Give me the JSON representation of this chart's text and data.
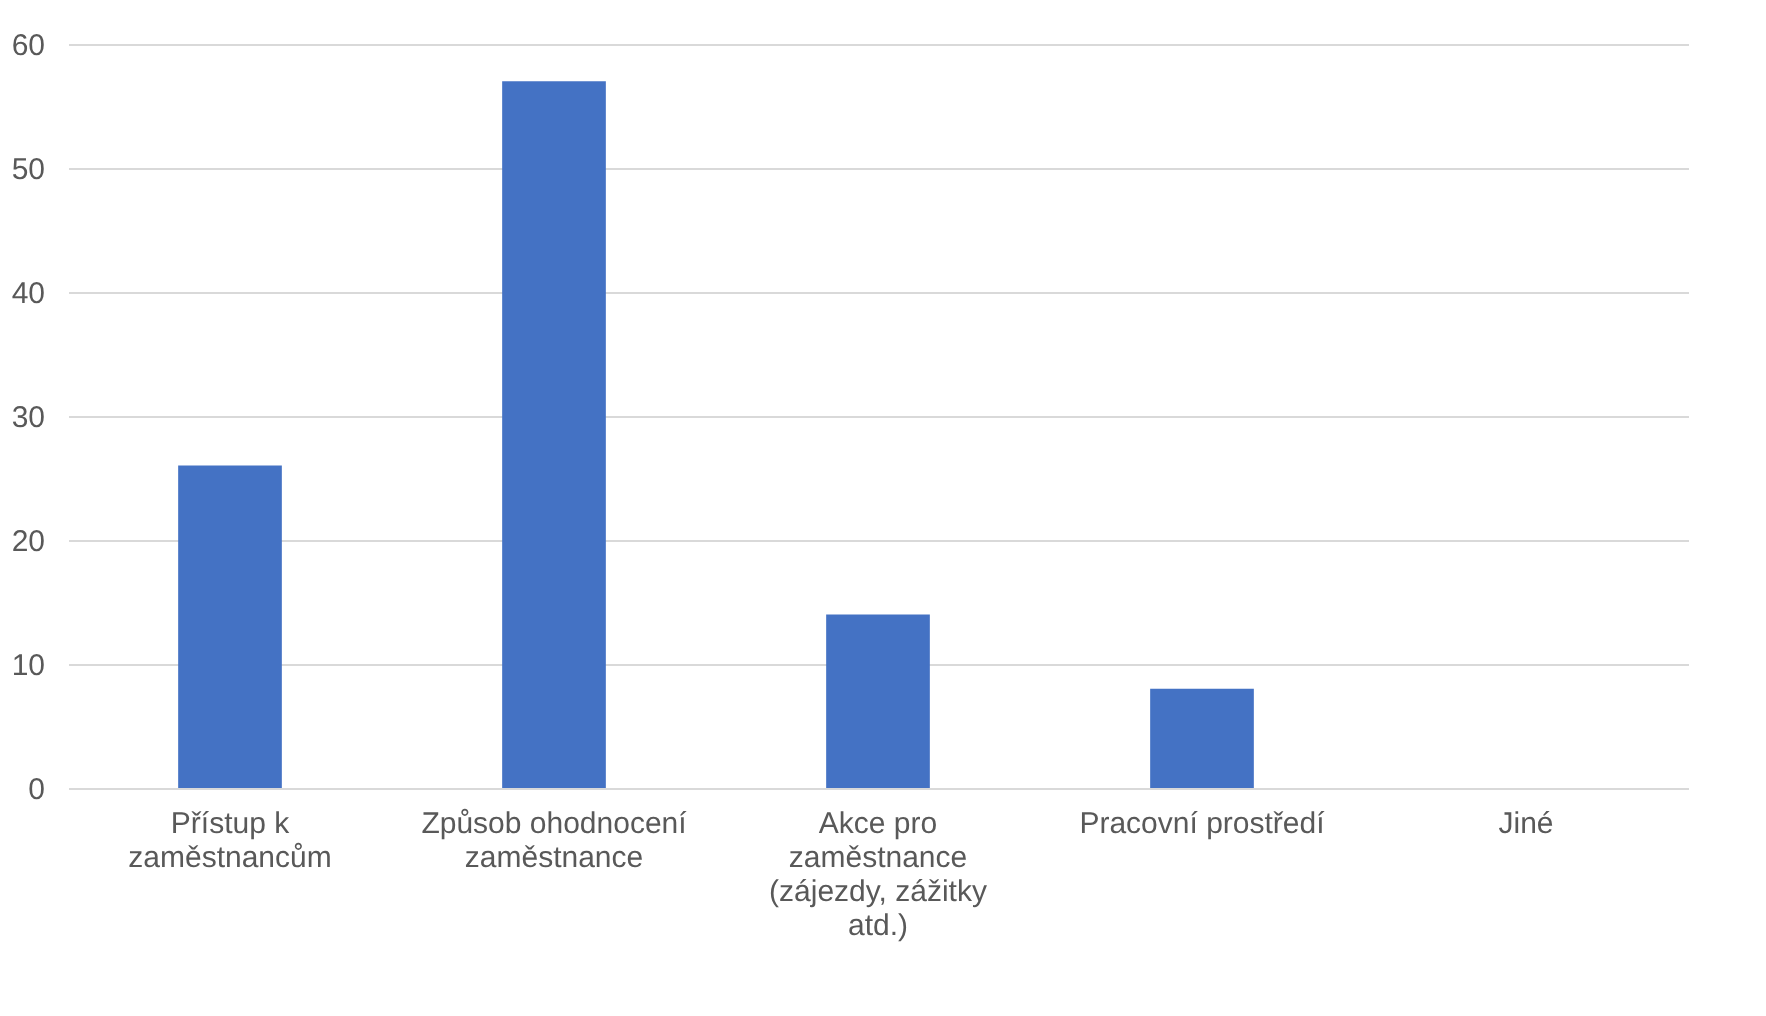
{
  "chart_data": {
    "type": "bar",
    "categories": [
      "Přístup k zaměstnancům",
      "Způsob ohodnocení zaměstnance",
      "Akce pro zaměstnance (zájezdy, zážitky atd.)",
      "Pracovní prostředí",
      "Jiné"
    ],
    "values": [
      26,
      57,
      14,
      8,
      0
    ],
    "color": "#4472c4",
    "ylim": [
      0,
      60
    ],
    "yticks": [
      0,
      10,
      20,
      30,
      40,
      50,
      60
    ],
    "grid": "y"
  }
}
